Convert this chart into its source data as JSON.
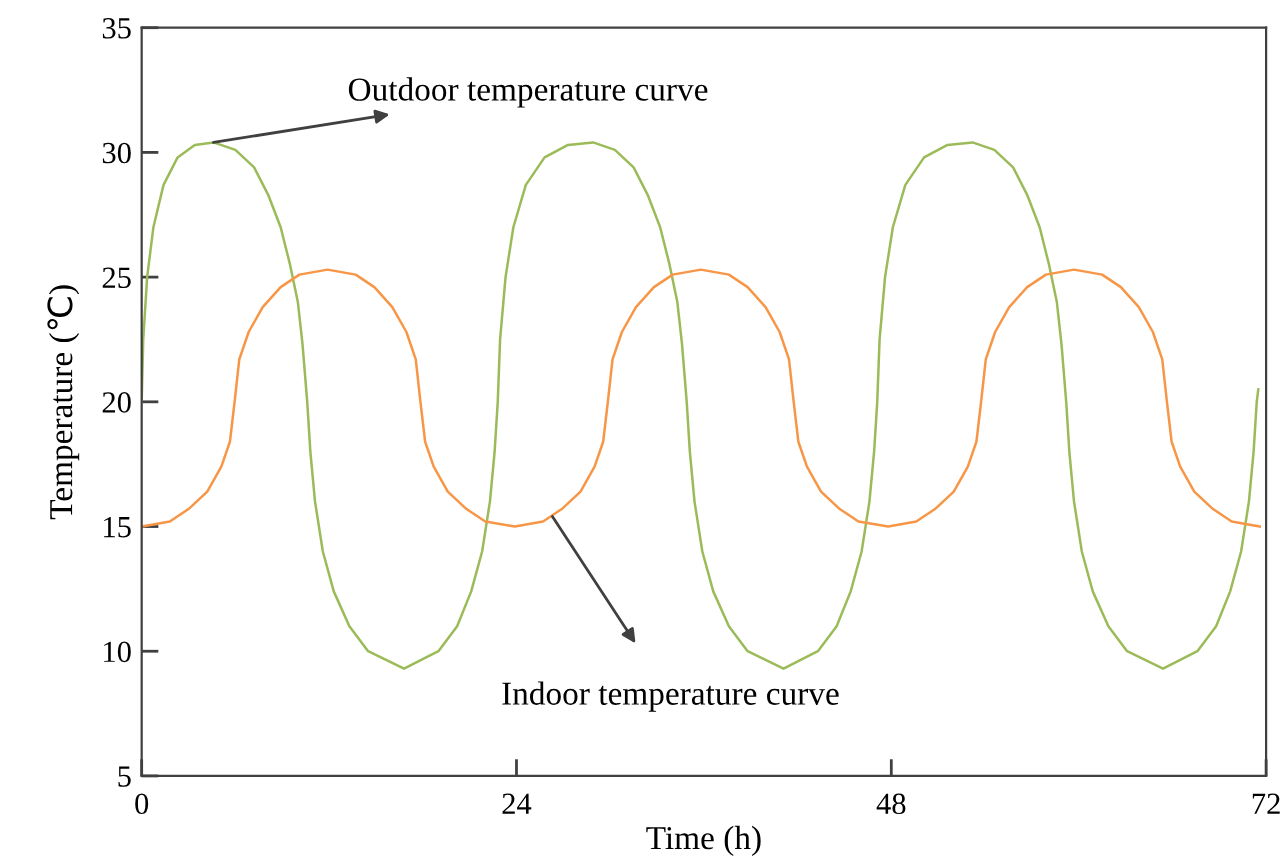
{
  "chart_data": {
    "type": "line",
    "xlabel": "Time (h)",
    "ylabel": "Temperature (℃)",
    "xlim": [
      0,
      72
    ],
    "ylim": [
      5,
      35
    ],
    "xticks": [
      0,
      24,
      48,
      72
    ],
    "yticks": [
      5,
      10,
      15,
      20,
      25,
      30,
      35
    ],
    "grid": false,
    "legend": false,
    "marker": "none",
    "line_style": "solid",
    "series": [
      {
        "color": "#9bbb59",
        "x": [
          0,
          0.1,
          0.35,
          0.75,
          1.4,
          2.3,
          3.4,
          4.6,
          6.0,
          7.2,
          8.1,
          8.9,
          9.5,
          10.0,
          10.3,
          10.6,
          10.8,
          11.1,
          11.6,
          12.3,
          13.3,
          14.5,
          16.8,
          19.0,
          20.2,
          21.1,
          21.8,
          22.3,
          22.6,
          22.8,
          22.95,
          23.3,
          23.8,
          24.6,
          25.8,
          27.3,
          28.9,
          30.3,
          31.5,
          32.4,
          33.2,
          33.8,
          34.3,
          34.6,
          34.9,
          35.1,
          35.4,
          35.9,
          36.6,
          37.6,
          38.8,
          41.1,
          43.3,
          44.5,
          45.4,
          46.1,
          46.6,
          46.9,
          47.1,
          47.25,
          47.6,
          48.1,
          48.9,
          50.1,
          51.6,
          53.2,
          54.6,
          55.8,
          56.7,
          57.5,
          58.1,
          58.6,
          58.9,
          59.2,
          59.4,
          59.7,
          60.2,
          60.9,
          61.9,
          63.1,
          65.4,
          67.6,
          68.8,
          69.7,
          70.4,
          70.9,
          71.2,
          71.4,
          71.5
        ],
        "values": [
          20,
          22.5,
          25,
          27,
          28.7,
          29.8,
          30.3,
          30.4,
          30.1,
          29.4,
          28.3,
          27,
          25.5,
          24,
          22.3,
          20,
          18,
          16,
          14,
          12.4,
          11,
          10,
          9.3,
          10,
          11,
          12.4,
          14,
          16,
          18,
          20,
          22.5,
          25,
          27,
          28.7,
          29.8,
          30.3,
          30.4,
          30.1,
          29.4,
          28.3,
          27,
          25.5,
          24,
          22.3,
          20,
          18,
          16,
          14,
          12.4,
          11,
          10,
          9.3,
          10,
          11,
          12.4,
          14,
          16,
          18,
          20,
          22.5,
          25,
          27,
          28.7,
          29.8,
          30.3,
          30.4,
          30.1,
          29.4,
          28.3,
          27,
          25.5,
          24,
          22.3,
          20,
          18,
          16,
          14,
          12.4,
          11,
          10,
          9.3,
          10,
          11,
          12.4,
          14,
          16,
          18,
          20,
          20.5
        ]
      },
      {
        "color": "#f79646",
        "x": [
          0,
          1.8,
          3.0,
          4.2,
          5.1,
          5.65,
          5.95,
          6.25,
          6.85,
          7.75,
          8.9,
          10.1,
          11.9,
          13.7,
          14.9,
          16.05,
          16.95,
          17.55,
          17.85,
          18.15,
          18.7,
          19.6,
          20.8,
          22.0,
          23.9,
          25.7,
          26.9,
          28.1,
          29.0,
          29.55,
          29.85,
          30.15,
          30.75,
          31.65,
          32.8,
          34.0,
          35.8,
          37.6,
          38.8,
          39.95,
          40.85,
          41.45,
          41.75,
          42.05,
          42.6,
          43.5,
          44.7,
          45.9,
          47.8,
          49.6,
          50.8,
          52.0,
          52.9,
          53.45,
          53.75,
          54.05,
          54.65,
          55.55,
          56.7,
          57.9,
          59.7,
          61.5,
          62.7,
          63.85,
          64.75,
          65.35,
          65.65,
          65.95,
          66.5,
          67.4,
          68.6,
          69.8,
          71.6
        ],
        "values": [
          15,
          15.2,
          15.7,
          16.4,
          17.4,
          18.4,
          20,
          21.7,
          22.8,
          23.8,
          24.6,
          25.1,
          25.3,
          25.1,
          24.6,
          23.8,
          22.8,
          21.7,
          20,
          18.4,
          17.4,
          16.4,
          15.7,
          15.2,
          15,
          15.2,
          15.7,
          16.4,
          17.4,
          18.4,
          20,
          21.7,
          22.8,
          23.8,
          24.6,
          25.1,
          25.3,
          25.1,
          24.6,
          23.8,
          22.8,
          21.7,
          20,
          18.4,
          17.4,
          16.4,
          15.7,
          15.2,
          15,
          15.2,
          15.7,
          16.4,
          17.4,
          18.4,
          20,
          21.7,
          22.8,
          23.8,
          24.6,
          25.1,
          25.3,
          25.1,
          24.6,
          23.8,
          22.8,
          21.7,
          20,
          18.4,
          17.4,
          16.4,
          15.7,
          15.2,
          15
        ]
      }
    ],
    "annotations": [
      {
        "text": "Outdoor temperature curve",
        "x": 4.6,
        "y": 30.4
      },
      {
        "text": "Indoor temperature curve",
        "x": 26.3,
        "y": 15.4
      }
    ]
  }
}
